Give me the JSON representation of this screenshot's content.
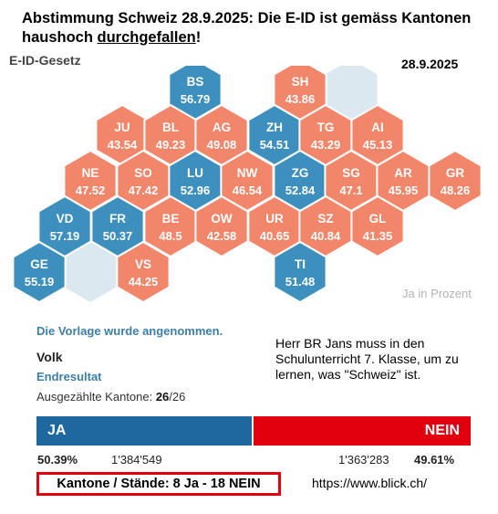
{
  "headline": {
    "part1": "Abstimmung Schweiz 28.9.2025: Die E-ID ist gemäss Kantonen haushoch ",
    "underlined": "durchgefallen",
    "part2": "!"
  },
  "law_label": "E-ID-Gesetz",
  "date_label": "28.9.2025",
  "unit_label": "Ja in Prozent",
  "colors": {
    "ja": "#3d8fbd",
    "nein": "#f2866b",
    "empty": "#dce8f0",
    "bar_ja": "#1f679f",
    "bar_nein": "#e2000f"
  },
  "chart_data": {
    "type": "heatmap",
    "value_label": "Ja in Prozent",
    "cantons": [
      {
        "code": "BS",
        "ja": 56.79
      },
      {
        "code": "SH",
        "ja": 43.86
      },
      {
        "code": "JU",
        "ja": 43.54
      },
      {
        "code": "BL",
        "ja": 49.23
      },
      {
        "code": "AG",
        "ja": 49.08
      },
      {
        "code": "ZH",
        "ja": 54.51
      },
      {
        "code": "TG",
        "ja": 43.29
      },
      {
        "code": "AI",
        "ja": 45.13
      },
      {
        "code": "NE",
        "ja": 47.52
      },
      {
        "code": "SO",
        "ja": 47.42
      },
      {
        "code": "LU",
        "ja": 52.96
      },
      {
        "code": "NW",
        "ja": 46.54
      },
      {
        "code": "ZG",
        "ja": 52.84
      },
      {
        "code": "SG",
        "ja": 47.1
      },
      {
        "code": "AR",
        "ja": 45.95
      },
      {
        "code": "GR",
        "ja": 48.26
      },
      {
        "code": "VD",
        "ja": 57.19
      },
      {
        "code": "FR",
        "ja": 50.37
      },
      {
        "code": "BE",
        "ja": 48.5
      },
      {
        "code": "OW",
        "ja": 42.58
      },
      {
        "code": "UR",
        "ja": 40.65
      },
      {
        "code": "SZ",
        "ja": 40.84
      },
      {
        "code": "GL",
        "ja": 41.35
      },
      {
        "code": "GE",
        "ja": 55.19
      },
      {
        "code": "VS",
        "ja": 44.25
      },
      {
        "code": "TI",
        "ja": 51.48
      }
    ]
  },
  "result": {
    "verdict": "Die Vorlage wurde angenommen.",
    "volk": "Volk",
    "endresultat": "Endresultat",
    "counted_label": "Ausgezählte Kantone: ",
    "counted_done": "26",
    "counted_total": "/26",
    "ja_label": "JA",
    "nein_label": "NEIN",
    "ja_pct": "50.39%",
    "ja_votes": "1'384'549",
    "nein_votes": "1'363'283",
    "nein_pct": "49.61%",
    "ja_share": 0.5039,
    "staende": "Kantone / Stände: 8 Ja - 18 NEIN"
  },
  "comment": "Herr BR Jans muss in den Schulunterricht 7. Klasse, um zu lernen, was \"Schweiz\" ist.",
  "source": "https://www.blick.ch/"
}
